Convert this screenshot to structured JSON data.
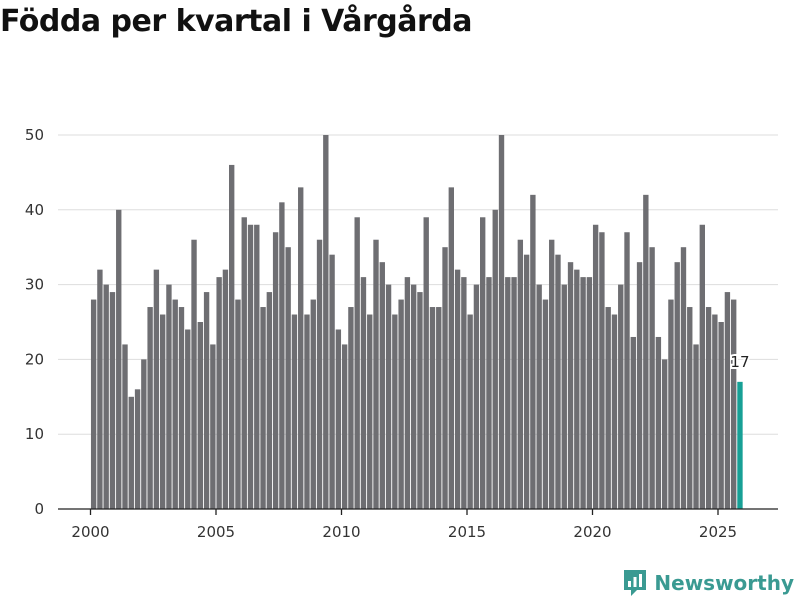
{
  "title": "Födda per kvartal i Vårgårda",
  "brand": {
    "name": "Newsworthy",
    "icon": "newsworthy-logo-icon"
  },
  "colors": {
    "bar": "#6e6e72",
    "highlight": "#17a096",
    "grid": "#dddddd",
    "axis": "#222222"
  },
  "chart_data": {
    "type": "bar",
    "title": "Födda per kvartal i Vårgårda",
    "xlabel": "",
    "ylabel": "",
    "ylim": [
      0,
      52
    ],
    "yticks": [
      0,
      10,
      20,
      30,
      40,
      50
    ],
    "xticks": [
      2000,
      2005,
      2010,
      2015,
      2020,
      2025
    ],
    "start_year": 2000,
    "start_quarter": 1,
    "highlight_last": true,
    "last_label": "17",
    "values": [
      28,
      32,
      30,
      29,
      40,
      22,
      15,
      16,
      20,
      27,
      32,
      26,
      30,
      28,
      27,
      24,
      36,
      25,
      29,
      22,
      31,
      32,
      46,
      28,
      39,
      38,
      38,
      27,
      29,
      37,
      41,
      35,
      26,
      43,
      26,
      28,
      36,
      50,
      34,
      24,
      22,
      27,
      39,
      31,
      26,
      36,
      33,
      30,
      26,
      28,
      31,
      30,
      29,
      39,
      27,
      27,
      35,
      43,
      32,
      31,
      26,
      30,
      39,
      31,
      40,
      50,
      31,
      31,
      36,
      34,
      42,
      30,
      28,
      36,
      34,
      30,
      33,
      32,
      31,
      31,
      38,
      37,
      27,
      26,
      30,
      37,
      23,
      33,
      42,
      35,
      23,
      20,
      28,
      33,
      35,
      27,
      22,
      38,
      27,
      26,
      25,
      29,
      28,
      17
    ]
  }
}
